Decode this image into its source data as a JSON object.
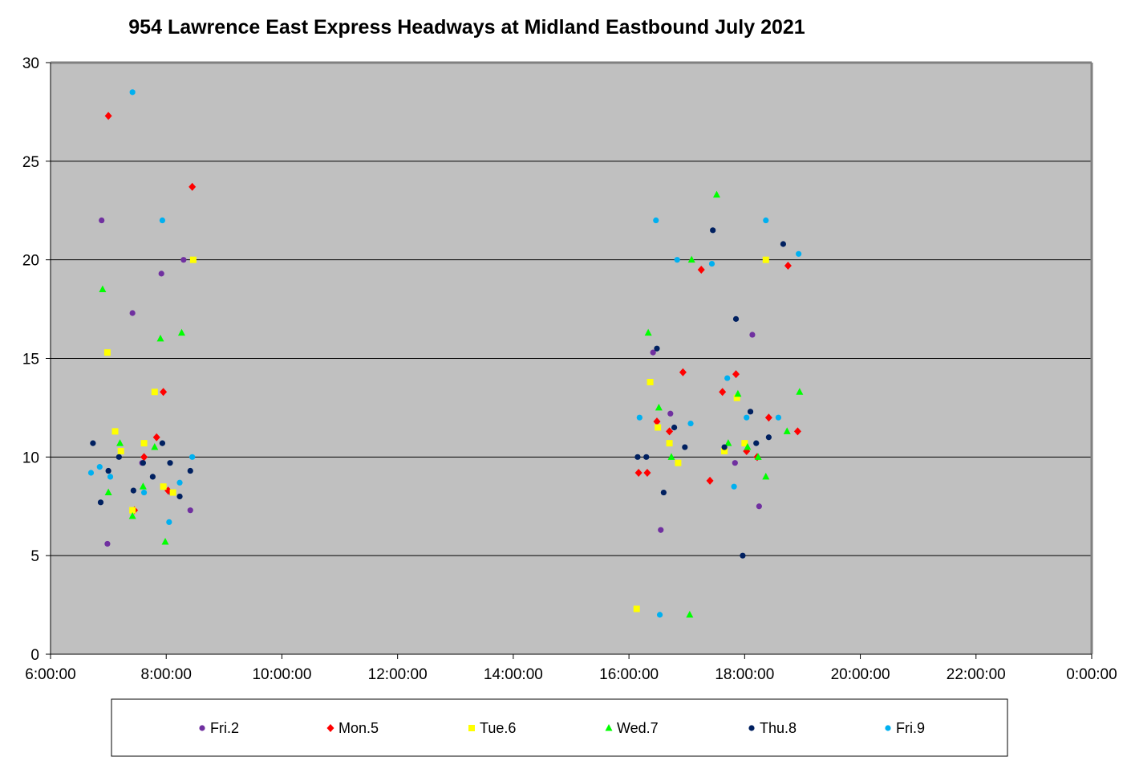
{
  "chart_data": {
    "type": "scatter",
    "title": "954 Lawrence East Express Headways at Midland Eastbound July 2021",
    "xlabel": "",
    "ylabel": "",
    "x_range": [
      "6:00:00",
      "0:00:00"
    ],
    "x_ticks": [
      "6:00:00",
      "8:00:00",
      "10:00:00",
      "12:00:00",
      "14:00:00",
      "16:00:00",
      "18:00:00",
      "20:00:00",
      "22:00:00",
      "0:00:00"
    ],
    "ylim": [
      0,
      30
    ],
    "y_ticks": [
      0,
      5,
      10,
      15,
      20,
      25,
      30
    ],
    "grid": "horizontal",
    "plot_background": "#c0c0c0",
    "legend_position": "bottom",
    "series": [
      {
        "name": "Fri.2",
        "marker": "circle",
        "color": "#7030a0",
        "x": [
          "6:53",
          "6:59",
          "7:25",
          "7:35",
          "7:55",
          "8:05",
          "8:18",
          "8:25",
          "16:25",
          "16:33",
          "16:43",
          "17:50",
          "18:08",
          "18:15"
        ],
        "y": [
          22.0,
          5.6,
          17.3,
          9.7,
          19.3,
          8.2,
          20.0,
          7.3,
          15.3,
          6.3,
          12.2,
          9.7,
          16.2,
          7.5
        ]
      },
      {
        "name": "Mon.5",
        "marker": "diamond",
        "color": "#ff0000",
        "x": [
          "7:00",
          "7:27",
          "7:37",
          "7:50",
          "7:57",
          "8:02",
          "8:27",
          "16:10",
          "16:19",
          "16:29",
          "16:42",
          "16:56",
          "17:15",
          "17:24",
          "17:37",
          "17:51",
          "18:02",
          "18:13",
          "18:25",
          "18:45",
          "18:55"
        ],
        "y": [
          27.3,
          7.3,
          10.0,
          11.0,
          13.3,
          8.3,
          23.7,
          9.2,
          9.2,
          11.8,
          11.3,
          14.3,
          19.5,
          8.8,
          13.3,
          14.2,
          10.3,
          10.0,
          12.0,
          19.7,
          11.3
        ]
      },
      {
        "name": "Tue.6",
        "marker": "square",
        "color": "#ffff00",
        "x": [
          "6:59",
          "7:07",
          "7:13",
          "7:25",
          "7:37",
          "7:48",
          "7:57",
          "8:07",
          "8:28",
          "16:08",
          "16:22",
          "16:30",
          "16:42",
          "16:51",
          "17:39",
          "17:52",
          "18:00",
          "18:22"
        ],
        "y": [
          15.3,
          11.3,
          10.3,
          7.3,
          10.7,
          13.3,
          8.5,
          8.2,
          20.0,
          2.3,
          13.8,
          11.5,
          10.7,
          9.7,
          10.3,
          13.0,
          10.7,
          20.0
        ]
      },
      {
        "name": "Wed.7",
        "marker": "triangle",
        "color": "#00ff00",
        "x": [
          "6:54",
          "7:00",
          "7:12",
          "7:25",
          "7:36",
          "7:48",
          "7:54",
          "7:59",
          "8:16",
          "16:20",
          "16:31",
          "16:44",
          "17:03",
          "17:05",
          "17:31",
          "17:43",
          "17:53",
          "18:03",
          "18:14",
          "18:22",
          "18:44",
          "18:57"
        ],
        "y": [
          18.5,
          8.2,
          10.7,
          7.0,
          8.5,
          10.5,
          16.0,
          5.7,
          16.3,
          16.3,
          12.5,
          10.0,
          2.0,
          20.0,
          23.3,
          10.7,
          13.2,
          10.5,
          10.0,
          9.0,
          11.3,
          13.3
        ]
      },
      {
        "name": "Thu.8",
        "marker": "circle",
        "color": "#002060",
        "x": [
          "6:44",
          "6:52",
          "7:00",
          "7:11",
          "7:26",
          "7:36",
          "7:46",
          "7:56",
          "8:04",
          "8:14",
          "8:25",
          "16:09",
          "16:18",
          "16:29",
          "16:36",
          "16:47",
          "16:58",
          "17:27",
          "17:39",
          "17:51",
          "17:58",
          "18:06",
          "18:12",
          "18:25",
          "18:40"
        ],
        "y": [
          10.7,
          7.7,
          9.3,
          10.0,
          8.3,
          9.7,
          9.0,
          10.7,
          9.7,
          8.0,
          9.3,
          10.0,
          10.0,
          15.5,
          8.2,
          11.5,
          10.5,
          21.5,
          10.5,
          17.0,
          5.0,
          12.3,
          10.7,
          11.0,
          20.8
        ]
      },
      {
        "name": "Fri.9",
        "marker": "circle",
        "color": "#00b0f0",
        "x": [
          "6:42",
          "6:51",
          "7:02",
          "7:25",
          "7:37",
          "7:56",
          "8:03",
          "8:14",
          "8:27",
          "16:11",
          "16:28",
          "16:32",
          "16:50",
          "17:04",
          "17:26",
          "17:42",
          "17:49",
          "18:02",
          "18:22",
          "18:35",
          "18:56"
        ],
        "y": [
          9.2,
          9.5,
          9.0,
          28.5,
          8.2,
          22.0,
          6.7,
          8.7,
          10.0,
          12.0,
          22.0,
          2.0,
          20.0,
          11.7,
          19.8,
          14.0,
          8.5,
          12.0,
          22.0,
          12.0,
          20.3
        ]
      }
    ]
  }
}
